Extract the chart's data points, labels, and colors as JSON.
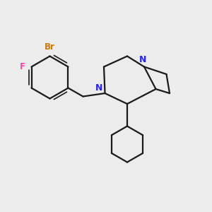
{
  "bg_color": "#ececec",
  "bond_color": "#1a1a1a",
  "N_color": "#2222ff",
  "Br_color": "#cc7700",
  "F_color": "#ff44aa",
  "bond_width": 1.6,
  "fig_w": 3.0,
  "fig_h": 3.0,
  "dpi": 100,
  "xlim": [
    0,
    10
  ],
  "ylim": [
    0,
    10
  ]
}
